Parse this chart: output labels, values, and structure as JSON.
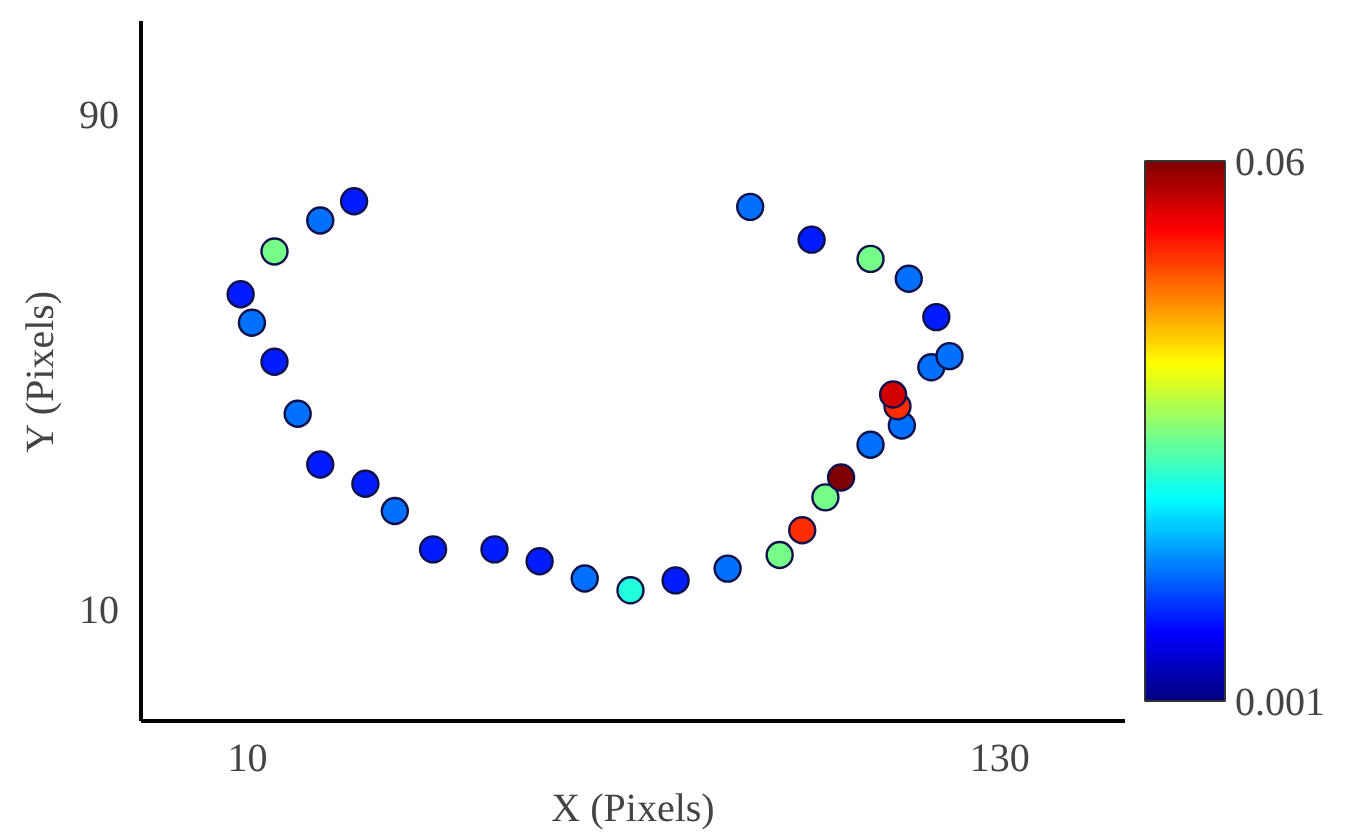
{
  "chart_data": {
    "type": "scatter",
    "xlabel": "X (Pixels)",
    "ylabel": "Y (Pixels)",
    "x": [
      27.0,
      21.6,
      14.3,
      8.9,
      10.7,
      14.3,
      18.0,
      21.6,
      28.8,
      33.5,
      39.6,
      49.4,
      56.6,
      63.8,
      71.1,
      78.3,
      86.6,
      94.9,
      98.5,
      102.2,
      104.7,
      109.4,
      114.4,
      113.7,
      113.0,
      119.1,
      122.0,
      119.9,
      115.5,
      109.4,
      100.0,
      90.2
    ],
    "values": [
      75.9,
      72.8,
      67.8,
      60.9,
      56.3,
      50.0,
      41.6,
      33.4,
      30.3,
      25.9,
      19.7,
      19.7,
      17.8,
      15.0,
      13.1,
      14.7,
      16.6,
      18.8,
      22.8,
      28.1,
      31.3,
      36.6,
      39.7,
      42.8,
      44.7,
      49.1,
      50.9,
      57.2,
      63.4,
      66.6,
      69.7,
      75.0
    ],
    "cvalues": [
      0.01,
      0.015,
      0.03,
      0.01,
      0.015,
      0.01,
      0.015,
      0.01,
      0.01,
      0.015,
      0.01,
      0.01,
      0.01,
      0.015,
      0.025,
      0.01,
      0.015,
      0.03,
      0.05,
      0.03,
      0.06,
      0.015,
      0.015,
      0.05,
      0.055,
      0.015,
      0.015,
      0.01,
      0.015,
      0.03,
      0.01,
      0.015
    ],
    "xlim": [
      -7,
      150
    ],
    "ylim": [
      -8,
      105
    ],
    "xticks": [
      10,
      130
    ],
    "yticks": [
      10,
      90
    ],
    "clim": [
      0.001,
      0.06
    ],
    "cticks": [
      0.001,
      0.06
    ],
    "marker": "circle",
    "grid": false
  }
}
